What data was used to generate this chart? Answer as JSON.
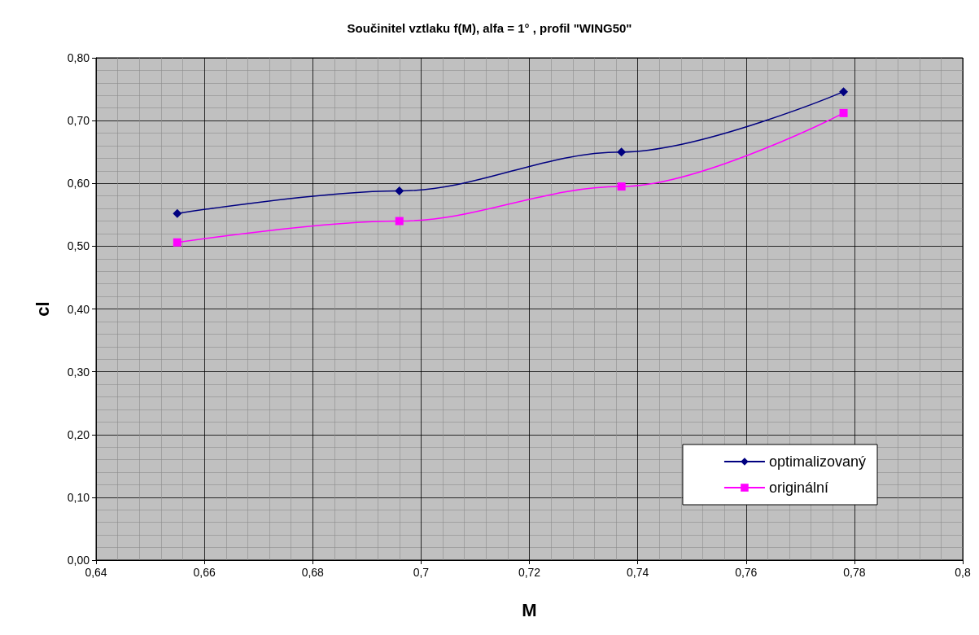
{
  "chart_data": {
    "type": "line",
    "title": "Součinitel vztlaku f(M), alfa = 1° , profil \"WING50\"",
    "xlabel": "M",
    "ylabel": "cl",
    "series": [
      {
        "name": "optimalizovaný",
        "color": "#000080",
        "marker": "diamond",
        "x": [
          0.655,
          0.696,
          0.737,
          0.778
        ],
        "values": [
          0.552,
          0.588,
          0.65,
          0.746
        ]
      },
      {
        "name": "originální",
        "color": "#ff00ff",
        "marker": "square",
        "x": [
          0.655,
          0.696,
          0.737,
          0.778
        ],
        "values": [
          0.506,
          0.54,
          0.595,
          0.712
        ]
      }
    ],
    "xlim": [
      0.64,
      0.8
    ],
    "xticks": [
      {
        "value": 0.64,
        "label": "0,64"
      },
      {
        "value": 0.66,
        "label": "0,66"
      },
      {
        "value": 0.68,
        "label": "0,68"
      },
      {
        "value": 0.7,
        "label": "0,7"
      },
      {
        "value": 0.72,
        "label": "0,72"
      },
      {
        "value": 0.74,
        "label": "0,74"
      },
      {
        "value": 0.76,
        "label": "0,76"
      },
      {
        "value": 0.78,
        "label": "0,78"
      },
      {
        "value": 0.8,
        "label": "0,8"
      }
    ],
    "ylim": [
      0,
      0.8
    ],
    "yticks": [
      {
        "value": 0,
        "label": "0,00"
      },
      {
        "value": 0.1,
        "label": "0,10"
      },
      {
        "value": 0.2,
        "label": "0,20"
      },
      {
        "value": 0.3,
        "label": "0,30"
      },
      {
        "value": 0.4,
        "label": "0,40"
      },
      {
        "value": 0.5,
        "label": "0,50"
      },
      {
        "value": 0.6,
        "label": "0,60"
      },
      {
        "value": 0.7,
        "label": "0,70"
      },
      {
        "value": 0.8,
        "label": "0,80"
      }
    ],
    "grid": true,
    "legend": "bottom right"
  }
}
